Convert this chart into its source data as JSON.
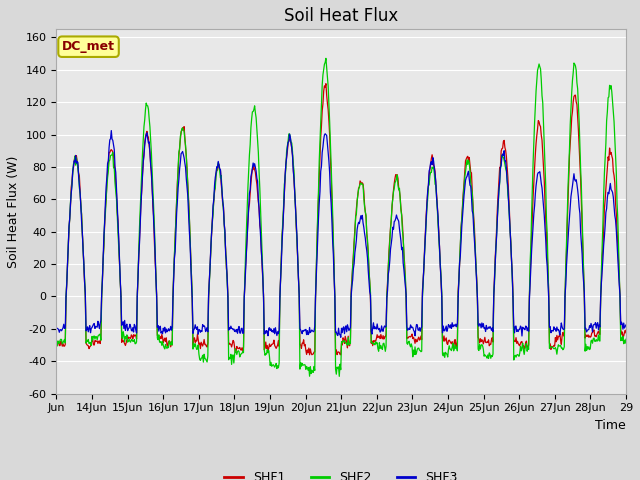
{
  "title": "Soil Heat Flux",
  "ylabel": "Soil Heat Flux (W)",
  "xlabel": "Time",
  "colors": {
    "SHF1": "#cc0000",
    "SHF2": "#00cc00",
    "SHF3": "#0000cc"
  },
  "legend_label": "DC_met",
  "legend_box_color": "#ffff99",
  "legend_box_border": "#aaaa00",
  "legend_text_color": "#880000",
  "background_color": "#d9d9d9",
  "plot_bg_color": "#e8e8e8",
  "grid_color": "#ffffff",
  "ylim": [
    -60,
    165
  ],
  "yticks": [
    -60,
    -40,
    -20,
    0,
    20,
    40,
    60,
    80,
    100,
    120,
    140,
    160
  ],
  "title_fontsize": 12,
  "axis_label_fontsize": 9,
  "tick_fontsize": 8,
  "day_peaks_shf1": [
    87,
    92,
    100,
    105,
    80,
    80,
    96,
    130,
    72,
    75,
    85,
    87,
    95,
    107,
    125,
    90
  ],
  "day_peaks_shf2": [
    85,
    88,
    118,
    105,
    80,
    117,
    100,
    145,
    70,
    73,
    80,
    83,
    87,
    143,
    143,
    130
  ],
  "day_peaks_shf3": [
    85,
    100,
    100,
    89,
    82,
    82,
    98,
    100,
    48,
    48,
    85,
    75,
    88,
    76,
    74,
    68
  ],
  "night_val_shf1": [
    -30,
    -28,
    -25,
    -28,
    -30,
    -32,
    -30,
    -35,
    -28,
    -25,
    -27,
    -28,
    -28,
    -30,
    -25,
    -23
  ],
  "night_val_shf2": [
    -28,
    -25,
    -27,
    -30,
    -38,
    -35,
    -43,
    -45,
    -28,
    -30,
    -35,
    -32,
    -36,
    -32,
    -32,
    -27
  ],
  "night_val_shf3": [
    -20,
    -18,
    -20,
    -20,
    -20,
    -22,
    -22,
    -22,
    -20,
    -20,
    -20,
    -18,
    -20,
    -20,
    -20,
    -18
  ]
}
